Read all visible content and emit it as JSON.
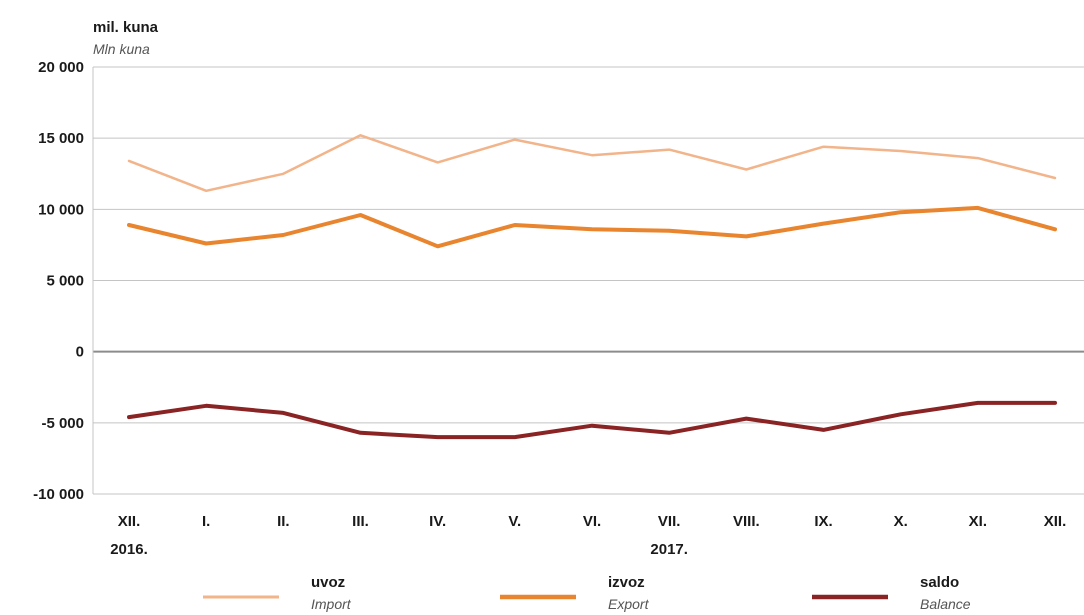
{
  "chart_data": {
    "type": "line",
    "ylabel": "mil. kuna",
    "ylabel_en": "Mln kuna",
    "ylim": [
      -10000,
      20000
    ],
    "yticks": [
      20000,
      15000,
      10000,
      5000,
      0,
      -5000,
      -10000
    ],
    "ytick_labels": [
      "20 000",
      "15 000",
      "10 000",
      "5 000",
      "0",
      "-5 000",
      "-10 000"
    ],
    "categories": [
      "XII.",
      "I.",
      "II.",
      "III.",
      "IV.",
      "V.",
      "VI.",
      "VII.",
      "VIII.",
      "IX.",
      "X.",
      "XI.",
      "XII."
    ],
    "year_labels": [
      {
        "index": 0,
        "text": "2016."
      },
      {
        "index": 7,
        "text": "2017."
      }
    ],
    "grid": true,
    "legend_position": "bottom",
    "series": [
      {
        "name": "uvoz",
        "name_en": "Import",
        "color": "#f2b48a",
        "values": [
          13400,
          11300,
          12500,
          15200,
          13300,
          14900,
          13800,
          14200,
          12800,
          14400,
          14100,
          13600,
          12200
        ]
      },
      {
        "name": "izvoz",
        "name_en": "Export",
        "color": "#e8852e",
        "values": [
          8900,
          7600,
          8200,
          9600,
          7400,
          8900,
          8600,
          8500,
          8100,
          9000,
          9800,
          10100,
          8600
        ]
      },
      {
        "name": "saldo",
        "name_en": "Balance",
        "color": "#8a2323",
        "values": [
          -4600,
          -3800,
          -4300,
          -5700,
          -6000,
          -6000,
          -5200,
          -5700,
          -4700,
          -5500,
          -4400,
          -3600,
          -3600
        ]
      }
    ]
  }
}
